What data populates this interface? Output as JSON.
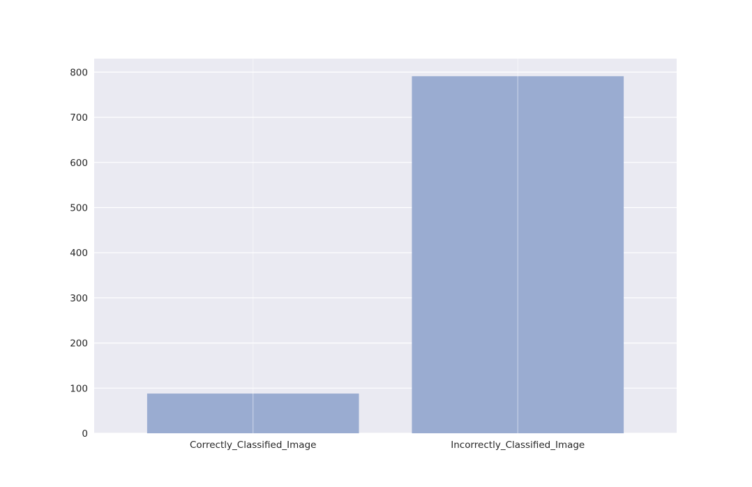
{
  "chart_data": {
    "type": "bar",
    "title": "",
    "xlabel": "",
    "ylabel": "",
    "categories": [
      "Correctly_Classified_Image",
      "Incorrectly_Classified_Image"
    ],
    "values": [
      88,
      791
    ],
    "ylim": [
      0,
      830
    ],
    "yticks": [
      "0",
      "100",
      "200",
      "300",
      "400",
      "500",
      "600",
      "700",
      "800"
    ],
    "grid": true,
    "colors": {
      "bar": "#9aacd1",
      "plot_background": "#eaeaf2",
      "gridline": "#ffffff",
      "text": "#262626"
    }
  }
}
